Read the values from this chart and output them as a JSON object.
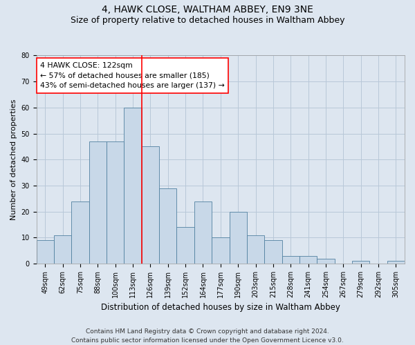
{
  "title1": "4, HAWK CLOSE, WALTHAM ABBEY, EN9 3NE",
  "title2": "Size of property relative to detached houses in Waltham Abbey",
  "xlabel": "Distribution of detached houses by size in Waltham Abbey",
  "ylabel": "Number of detached properties",
  "footer1": "Contains HM Land Registry data © Crown copyright and database right 2024.",
  "footer2": "Contains public sector information licensed under the Open Government Licence v3.0.",
  "annotation_line1": "4 HAWK CLOSE: 122sqm",
  "annotation_line2": "← 57% of detached houses are smaller (185)",
  "annotation_line3": "43% of semi-detached houses are larger (137) →",
  "bar_values": [
    9,
    11,
    24,
    47,
    47,
    60,
    45,
    29,
    14,
    24,
    10,
    20,
    11,
    9,
    3,
    3,
    2,
    0,
    1,
    0,
    1
  ],
  "categories": [
    "49sqm",
    "62sqm",
    "75sqm",
    "88sqm",
    "100sqm",
    "113sqm",
    "126sqm",
    "139sqm",
    "152sqm",
    "164sqm",
    "177sqm",
    "190sqm",
    "203sqm",
    "215sqm",
    "228sqm",
    "241sqm",
    "254sqm",
    "267sqm",
    "279sqm",
    "292sqm",
    "305sqm"
  ],
  "bar_color": "#c8d8e8",
  "bar_edge_color": "#5080a0",
  "vline_x": 5.5,
  "vline_color": "red",
  "ylim": [
    0,
    80
  ],
  "yticks": [
    0,
    10,
    20,
    30,
    40,
    50,
    60,
    70,
    80
  ],
  "grid_color": "#b8c8d8",
  "bg_color": "#dde6f0",
  "annotation_box_color": "white",
  "annotation_box_edge": "red",
  "title1_fontsize": 10,
  "title2_fontsize": 9,
  "ylabel_fontsize": 8,
  "xlabel_fontsize": 8.5,
  "tick_fontsize": 7,
  "footer_fontsize": 6.5
}
